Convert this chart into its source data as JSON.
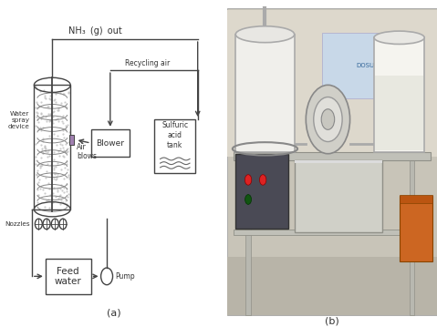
{
  "background_color": "#ffffff",
  "line_color": "#444444",
  "text_color": "#333333",
  "label_a": "(a)",
  "label_b": "(b)",
  "nh3_label": "NH₃  (g)  out",
  "recycling_label": "Recycling air",
  "blower_label": "Blower",
  "sulfuric_line1": "Sulfuric",
  "sulfuric_line2": "acid",
  "sulfuric_line3": "tank",
  "air_blows_line1": "Air",
  "air_blows_line2": "blows",
  "water_spray_line1": "Water",
  "water_spray_line2": "spray",
  "water_spray_line3": "device",
  "nozzles_label": "Nozzles",
  "feed_water_line1": "Feed",
  "feed_water_line2": "water",
  "pump_label": "Pump",
  "fig_width": 4.79,
  "fig_height": 3.59,
  "dpi": 100
}
